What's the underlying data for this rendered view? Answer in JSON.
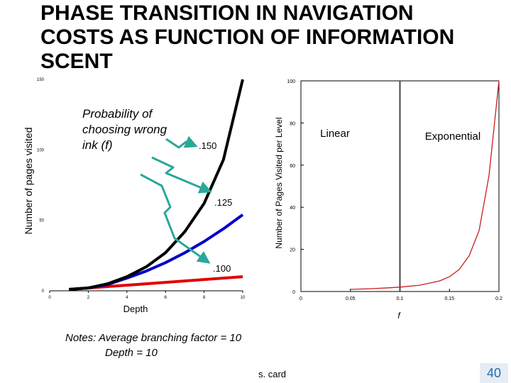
{
  "slide": {
    "title_lines": [
      "PHASE TRANSITION IN NAVIGATION",
      "COSTS AS FUNCTION OF INFORMATION",
      "SCENT"
    ],
    "notes_line1": "Notes: Average branching factor = 10",
    "notes_line2": "Depth = 10",
    "credit": "s. card",
    "page_number": "40"
  },
  "colors": {
    "black_curve": "#000000",
    "blue_curve": "#0000c8",
    "red_curve": "#e00000",
    "pointer_arrow": "#2aa79b",
    "exp_curve": "#c81e1e",
    "page_number": "#1f6fb2"
  },
  "chart_data": [
    {
      "type": "line",
      "xlabel": "Depth",
      "ylabel": "Number of pages visited",
      "xlim": [
        0,
        10
      ],
      "ylim": [
        0,
        150
      ],
      "x_ticks": [
        "0",
        "2",
        "4",
        "6",
        "8",
        "10"
      ],
      "y_ticks": [
        "0",
        "50",
        "100",
        "150"
      ],
      "annotation": "Probability of choosing wrong link (f)",
      "series": [
        {
          "name": ".150",
          "color": "#000000",
          "x": [
            1,
            2,
            3,
            4,
            5,
            6,
            7,
            8,
            9,
            10
          ],
          "y": [
            1,
            2,
            5,
            10,
            17,
            27,
            42,
            62,
            93,
            150
          ]
        },
        {
          "name": ".125",
          "color": "#0000c8",
          "x": [
            1,
            2,
            3,
            4,
            5,
            6,
            7,
            8,
            9,
            10
          ],
          "y": [
            1,
            2,
            4.5,
            9,
            14,
            20,
            27,
            35,
            44,
            54
          ]
        },
        {
          "name": ".100",
          "color": "#e00000",
          "x": [
            1,
            2,
            3,
            4,
            5,
            6,
            7,
            8,
            9,
            10
          ],
          "y": [
            1,
            2,
            3,
            4,
            5,
            6,
            7,
            8,
            9,
            10
          ]
        }
      ]
    },
    {
      "type": "line",
      "xlabel": "f",
      "ylabel": "Number of Pages Visited per Level",
      "xlim": [
        0,
        0.2
      ],
      "ylim": [
        0,
        100
      ],
      "x_ticks": [
        "0",
        "0.05",
        "0.1",
        "0.15",
        "0.2"
      ],
      "y_ticks": [
        "0",
        "20",
        "40",
        "60",
        "80",
        "100"
      ],
      "threshold_x": 0.1,
      "region_labels": [
        "Linear",
        "Exponential"
      ],
      "series": [
        {
          "name": "",
          "color": "#c81e1e",
          "x": [
            0.05,
            0.07,
            0.09,
            0.1,
            0.12,
            0.14,
            0.15,
            0.16,
            0.17,
            0.18,
            0.19,
            0.2
          ],
          "y": [
            1,
            1.3,
            1.8,
            2.1,
            3,
            5,
            7,
            10.5,
            17,
            29,
            55,
            100
          ]
        }
      ]
    }
  ]
}
